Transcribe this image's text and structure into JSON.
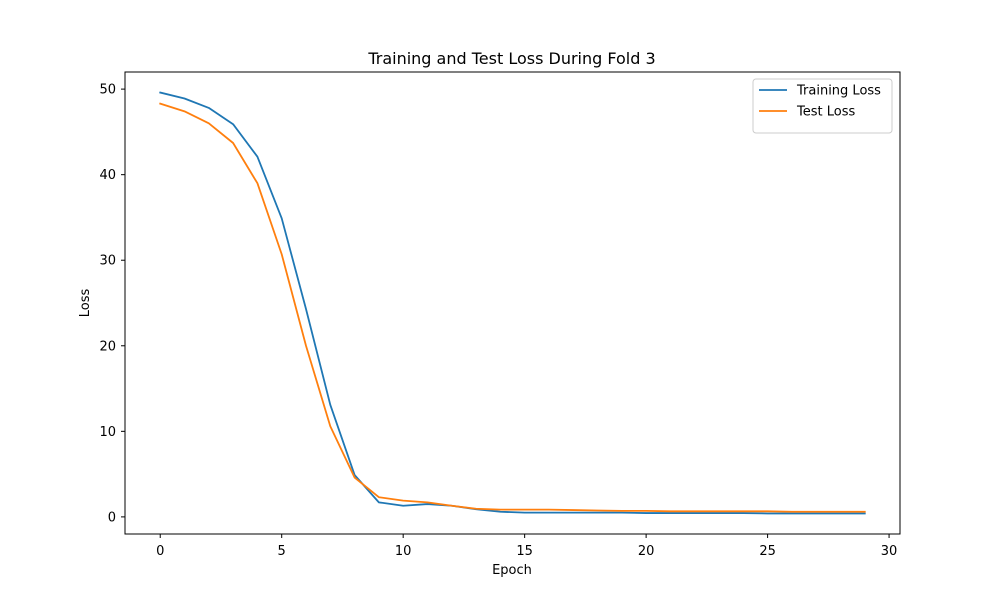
{
  "chart_data": {
    "type": "line",
    "title": "Training and Test Loss During Fold 3",
    "xlabel": "Epoch",
    "ylabel": "Loss",
    "xlim": [
      -1.45,
      30.45
    ],
    "ylim": [
      -2.0,
      52.0
    ],
    "xticks": [
      0,
      5,
      10,
      15,
      20,
      25,
      30
    ],
    "yticks": [
      0,
      10,
      20,
      30,
      40,
      50
    ],
    "grid": false,
    "legend_position": "top-right",
    "x": [
      0,
      1,
      2,
      3,
      4,
      5,
      6,
      7,
      8,
      9,
      10,
      11,
      12,
      13,
      14,
      15,
      16,
      17,
      18,
      19,
      20,
      21,
      22,
      23,
      24,
      25,
      26,
      27,
      28,
      29
    ],
    "series": [
      {
        "name": "Training Loss",
        "color": "#1f77b4",
        "values": [
          49.6,
          48.9,
          47.8,
          45.9,
          42.1,
          34.9,
          24.3,
          13.1,
          4.9,
          1.7,
          1.3,
          1.5,
          1.3,
          0.9,
          0.6,
          0.5,
          0.5,
          0.5,
          0.5,
          0.5,
          0.45,
          0.45,
          0.45,
          0.45,
          0.45,
          0.4,
          0.4,
          0.4,
          0.4,
          0.4
        ]
      },
      {
        "name": "Test Loss",
        "color": "#ff7f0e",
        "values": [
          48.3,
          47.4,
          46.0,
          43.7,
          39.0,
          30.7,
          20.0,
          10.6,
          4.6,
          2.3,
          1.9,
          1.7,
          1.3,
          0.95,
          0.85,
          0.85,
          0.85,
          0.8,
          0.75,
          0.7,
          0.7,
          0.65,
          0.65,
          0.65,
          0.65,
          0.65,
          0.6,
          0.6,
          0.6,
          0.6
        ]
      }
    ]
  }
}
